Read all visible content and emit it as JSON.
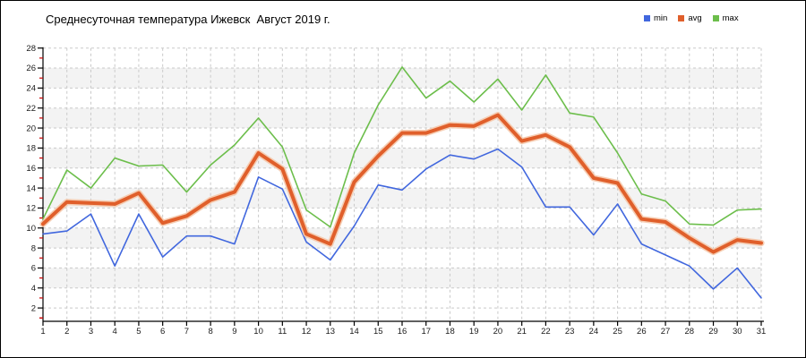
{
  "chart_data": {
    "type": "line",
    "title": "Среднесуточная температура Ижевск  Август 2019 г.",
    "xlabel": "",
    "ylabel": "",
    "categories": [
      1,
      2,
      3,
      4,
      5,
      6,
      7,
      8,
      9,
      10,
      11,
      12,
      13,
      14,
      15,
      16,
      17,
      18,
      19,
      20,
      21,
      22,
      23,
      24,
      25,
      26,
      27,
      28,
      29,
      30,
      31
    ],
    "ylim": [
      2,
      28
    ],
    "y_ticks": [
      2,
      4,
      6,
      8,
      10,
      12,
      14,
      16,
      18,
      20,
      22,
      24,
      26,
      28
    ],
    "y_minor_ticks": [
      1,
      3,
      5,
      7,
      9,
      11,
      13,
      15,
      17,
      19,
      21,
      23,
      25,
      27
    ],
    "grid": true,
    "legend_position": "top-right",
    "series": [
      {
        "name": "min",
        "color": "#4167DE",
        "width": 1.6,
        "values": [
          9.4,
          9.7,
          11.4,
          6.2,
          11.4,
          7.1,
          9.2,
          9.2,
          8.4,
          15.1,
          13.9,
          8.6,
          6.8,
          10.2,
          14.3,
          13.8,
          15.9,
          17.3,
          16.9,
          17.9,
          16.1,
          12.1,
          12.1,
          9.3,
          12.4,
          8.4,
          7.3,
          6.2,
          3.9,
          6.0,
          3.0
        ]
      },
      {
        "name": "avg",
        "color": "#E05F2B",
        "halo_color": "#F5C9AC",
        "width": 4,
        "values": [
          10.4,
          12.6,
          12.5,
          12.4,
          13.5,
          10.5,
          11.2,
          12.8,
          13.6,
          17.5,
          15.9,
          9.4,
          8.4,
          14.6,
          17.2,
          19.5,
          19.5,
          20.3,
          20.2,
          21.3,
          18.7,
          19.3,
          18.1,
          15.0,
          14.5,
          10.9,
          10.6,
          9.0,
          7.6,
          8.8,
          8.5
        ]
      },
      {
        "name": "max",
        "color": "#6CBE4B",
        "width": 1.6,
        "values": [
          10.9,
          15.8,
          14.0,
          17.0,
          16.2,
          16.3,
          13.6,
          16.3,
          18.3,
          21.0,
          18.1,
          11.8,
          10.1,
          17.5,
          22.3,
          26.1,
          23.0,
          24.7,
          22.6,
          24.9,
          21.8,
          25.3,
          21.5,
          21.1,
          17.5,
          13.4,
          12.7,
          10.4,
          10.3,
          11.8,
          11.9
        ]
      }
    ],
    "style": {
      "band_color": "#F3F3F3",
      "grid_color": "#C9C9C9",
      "axis_color": "#000000",
      "minor_tick_color": "#CC0000",
      "tick_label_color": "#1A1A1A"
    }
  }
}
